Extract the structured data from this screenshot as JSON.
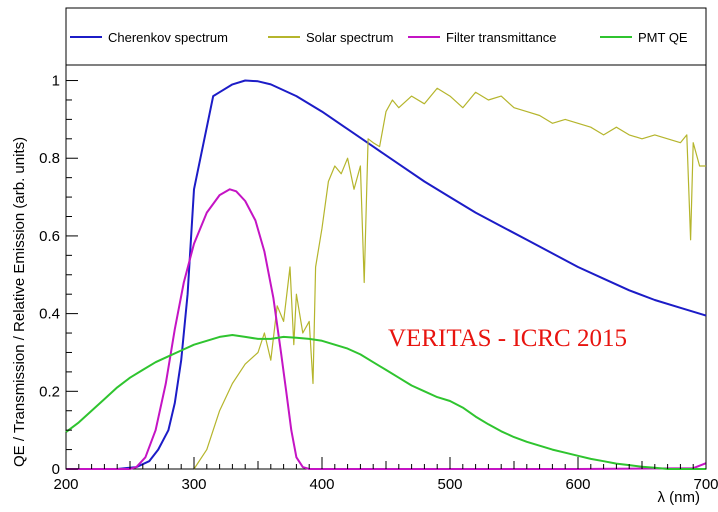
{
  "chart_data": {
    "type": "line",
    "xlabel": "λ (nm)",
    "ylabel": "QE / Transmission / Relative Emission (arb. units)",
    "xlim": [
      200,
      700
    ],
    "ylim": [
      0,
      1.04
    ],
    "x_ticks": [
      "200",
      "300",
      "400",
      "500",
      "600",
      "700"
    ],
    "y_ticks": [
      "0",
      "0.2",
      "0.4",
      "0.6",
      "0.8",
      "1"
    ],
    "grid": false,
    "legend_position": "top",
    "annotation": {
      "text": "VERITAS - ICRC 2015",
      "color": "#e8140f"
    },
    "series": [
      {
        "name": "Cherenkov spectrum",
        "color": "#1c1cc7",
        "x": [
          200,
          240,
          255,
          265,
          272,
          280,
          285,
          290,
          295,
          300,
          305,
          310,
          315,
          320,
          330,
          340,
          350,
          360,
          380,
          400,
          420,
          440,
          460,
          480,
          500,
          520,
          540,
          560,
          580,
          600,
          620,
          640,
          660,
          680,
          700
        ],
        "y": [
          0.0,
          0.0,
          0.005,
          0.02,
          0.05,
          0.1,
          0.17,
          0.28,
          0.45,
          0.72,
          0.8,
          0.88,
          0.96,
          0.97,
          0.99,
          1.0,
          0.998,
          0.99,
          0.96,
          0.92,
          0.875,
          0.83,
          0.785,
          0.74,
          0.7,
          0.66,
          0.625,
          0.59,
          0.555,
          0.52,
          0.49,
          0.46,
          0.435,
          0.415,
          0.395
        ]
      },
      {
        "name": "Solar spectrum",
        "color": "#b5b52c",
        "x": [
          300,
          310,
          320,
          330,
          340,
          350,
          355,
          360,
          365,
          370,
          375,
          378,
          380,
          385,
          390,
          393,
          395,
          400,
          405,
          410,
          415,
          420,
          425,
          430,
          433,
          436,
          440,
          445,
          450,
          455,
          460,
          470,
          480,
          490,
          500,
          510,
          520,
          530,
          540,
          550,
          560,
          570,
          580,
          590,
          600,
          610,
          620,
          630,
          640,
          650,
          660,
          670,
          680,
          685,
          688,
          690,
          695,
          700
        ],
        "y": [
          0.0,
          0.05,
          0.15,
          0.22,
          0.27,
          0.3,
          0.35,
          0.28,
          0.42,
          0.38,
          0.52,
          0.32,
          0.45,
          0.35,
          0.38,
          0.22,
          0.52,
          0.62,
          0.74,
          0.78,
          0.76,
          0.8,
          0.72,
          0.78,
          0.48,
          0.85,
          0.84,
          0.83,
          0.92,
          0.95,
          0.93,
          0.96,
          0.94,
          0.98,
          0.96,
          0.93,
          0.97,
          0.95,
          0.96,
          0.93,
          0.92,
          0.91,
          0.89,
          0.9,
          0.89,
          0.88,
          0.86,
          0.88,
          0.86,
          0.85,
          0.86,
          0.85,
          0.84,
          0.86,
          0.59,
          0.84,
          0.78,
          0.78
        ]
      },
      {
        "name": "Filter transmittance",
        "color": "#c414c4",
        "x": [
          200,
          250,
          255,
          262,
          270,
          278,
          285,
          292,
          300,
          310,
          320,
          328,
          333,
          340,
          348,
          355,
          362,
          368,
          372,
          376,
          380,
          385,
          390,
          395,
          400,
          500,
          600,
          690,
          700
        ],
        "y": [
          0.0,
          0.0,
          0.005,
          0.03,
          0.1,
          0.22,
          0.36,
          0.48,
          0.58,
          0.66,
          0.705,
          0.72,
          0.715,
          0.69,
          0.64,
          0.56,
          0.44,
          0.3,
          0.2,
          0.1,
          0.03,
          0.005,
          0.0,
          0.0,
          0.0,
          0.0,
          0.0,
          0.002,
          0.015
        ]
      },
      {
        "name": "PMT QE",
        "color": "#2fc42f",
        "x": [
          200,
          210,
          220,
          230,
          240,
          250,
          260,
          270,
          280,
          290,
          300,
          310,
          320,
          330,
          340,
          350,
          360,
          370,
          380,
          390,
          400,
          410,
          420,
          430,
          440,
          450,
          460,
          470,
          480,
          490,
          500,
          510,
          520,
          530,
          540,
          550,
          560,
          570,
          580,
          590,
          600,
          610,
          620,
          630,
          640,
          650,
          660,
          670,
          680,
          690,
          700
        ],
        "y": [
          0.095,
          0.12,
          0.15,
          0.18,
          0.21,
          0.235,
          0.255,
          0.275,
          0.29,
          0.305,
          0.32,
          0.33,
          0.34,
          0.345,
          0.34,
          0.335,
          0.335,
          0.34,
          0.338,
          0.335,
          0.33,
          0.32,
          0.31,
          0.295,
          0.275,
          0.255,
          0.235,
          0.215,
          0.2,
          0.185,
          0.175,
          0.158,
          0.135,
          0.115,
          0.097,
          0.082,
          0.07,
          0.06,
          0.05,
          0.042,
          0.034,
          0.026,
          0.02,
          0.014,
          0.01,
          0.006,
          0.003,
          0.0,
          0.0,
          0.0,
          0.0
        ]
      }
    ]
  }
}
